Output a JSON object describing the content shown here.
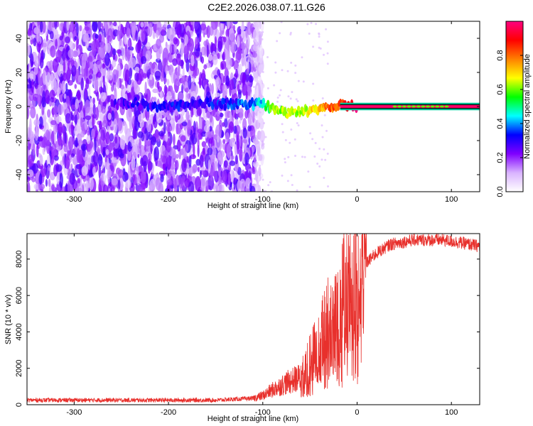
{
  "title": "C2E2.2026.038.07.11.G26",
  "chart_data": [
    {
      "type": "heatmap",
      "title": "C2E2.2026.038.07.11.G26",
      "xlabel": "Height of straight line (km)",
      "ylabel": "Frequency (Hz)",
      "xlim": [
        -350,
        130
      ],
      "ylim": [
        -50,
        50
      ],
      "xticks": [
        -300,
        -200,
        -100,
        0,
        100
      ],
      "yticks": [
        -40,
        -20,
        0,
        20,
        40
      ],
      "colorbar": {
        "label": "Normalized spectral amplitude",
        "range": [
          0,
          1
        ],
        "ticks": [
          "0.0",
          "0.2",
          "0.4",
          "0.6",
          "0.8"
        ],
        "colors": [
          "#ffffff",
          "#d9b3ff",
          "#8000ff",
          "#0000ff",
          "#00ffff",
          "#00ff00",
          "#ffff00",
          "#ff8000",
          "#ff0000",
          "#ff0080"
        ]
      },
      "signal_track": [
        {
          "x": -350,
          "f": 0,
          "a": 0.0
        },
        {
          "x": -250,
          "f": 2,
          "a": 0.25
        },
        {
          "x": -210,
          "f": 0,
          "a": 0.3
        },
        {
          "x": -160,
          "f": 2,
          "a": 0.3
        },
        {
          "x": -120,
          "f": 1,
          "a": 0.35
        },
        {
          "x": -100,
          "f": 2,
          "a": 0.45
        },
        {
          "x": -90,
          "f": -1,
          "a": 0.6
        },
        {
          "x": -75,
          "f": -4,
          "a": 0.65
        },
        {
          "x": -60,
          "f": -3,
          "a": 0.6
        },
        {
          "x": -45,
          "f": -2,
          "a": 0.7
        },
        {
          "x": -30,
          "f": 0,
          "a": 0.8
        },
        {
          "x": -15,
          "f": 1,
          "a": 0.85
        },
        {
          "x": 0,
          "f": 0,
          "a": 1.0
        },
        {
          "x": 130,
          "f": 0,
          "a": 1.0
        }
      ]
    },
    {
      "type": "line",
      "xlabel": "Height of straight line (km)",
      "ylabel": "SNR (10 * v/v)",
      "xlim": [
        -350,
        130
      ],
      "ylim": [
        0,
        9400
      ],
      "xticks": [
        -300,
        -200,
        -100,
        0,
        100
      ],
      "yticks": [
        0,
        2000,
        4000,
        6000,
        8000
      ],
      "color": "#e8302c",
      "envelope": [
        {
          "x": -350,
          "y": 250
        },
        {
          "x": -150,
          "y": 250
        },
        {
          "x": -110,
          "y": 350
        },
        {
          "x": -100,
          "y": 500
        },
        {
          "x": -90,
          "y": 800
        },
        {
          "x": -75,
          "y": 1200
        },
        {
          "x": -60,
          "y": 1500
        },
        {
          "x": -50,
          "y": 2500
        },
        {
          "x": -40,
          "y": 3500
        },
        {
          "x": -30,
          "y": 4800
        },
        {
          "x": -20,
          "y": 5600
        },
        {
          "x": -10,
          "y": 6400
        },
        {
          "x": 0,
          "y": 7100
        },
        {
          "x": 10,
          "y": 7800
        },
        {
          "x": 20,
          "y": 8300
        },
        {
          "x": 35,
          "y": 8800
        },
        {
          "x": 60,
          "y": 9050
        },
        {
          "x": 90,
          "y": 9050
        },
        {
          "x": 110,
          "y": 8900
        },
        {
          "x": 130,
          "y": 8700
        }
      ]
    }
  ]
}
